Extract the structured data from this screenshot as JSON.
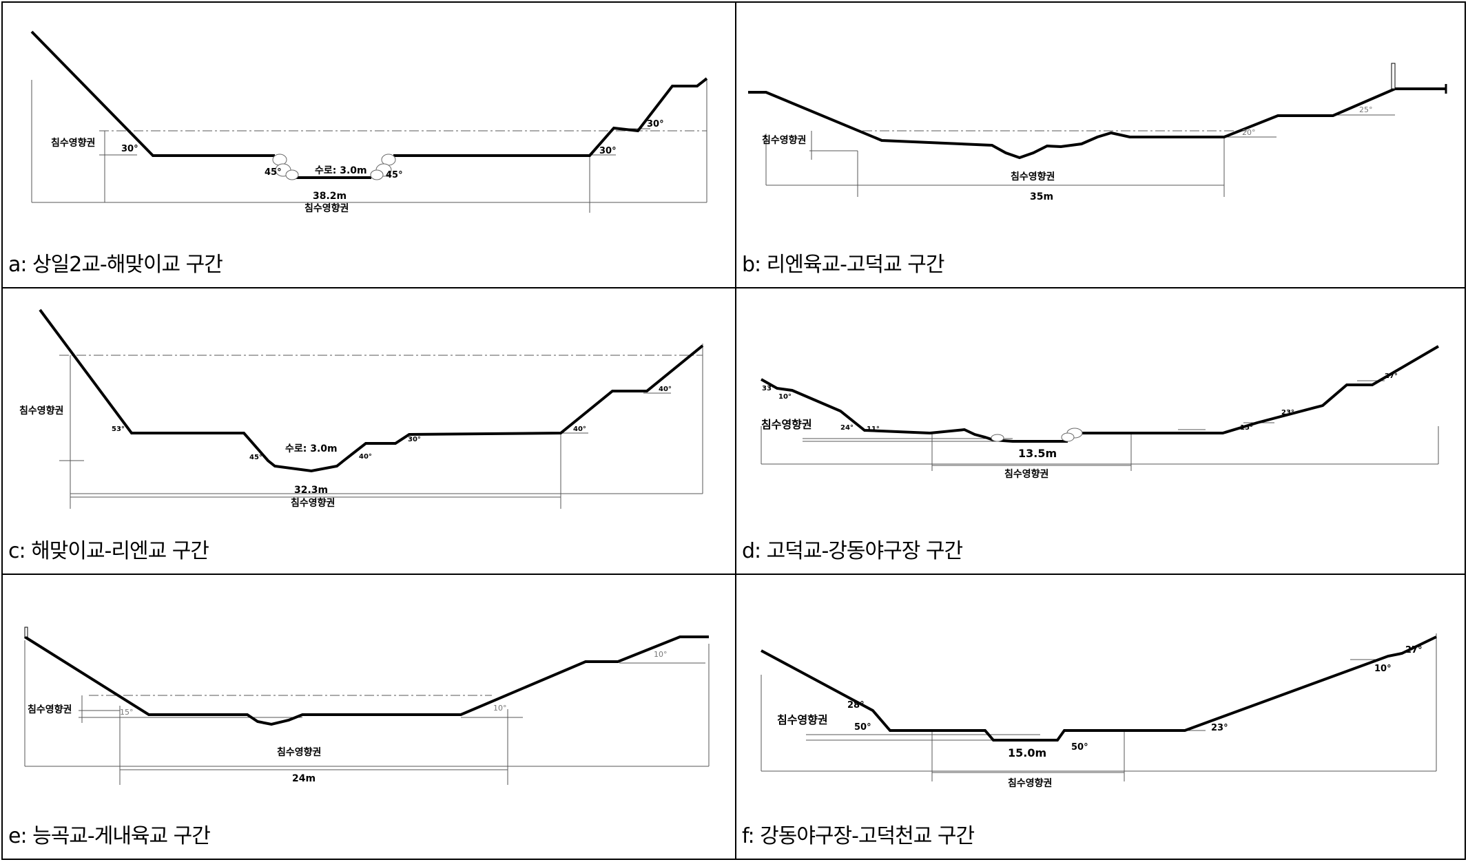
{
  "panels": [
    {
      "caption": "a: 상일2교-해맞이교 구간",
      "labels": {
        "zone_left": "침수영향권",
        "zone_bottom": "침수영향권",
        "width": "38.2m",
        "channel": "수로: 3.0m"
      },
      "angles": [
        "30°",
        "45°",
        "45°",
        "30°",
        "30°"
      ]
    },
    {
      "caption": "b: 리엔육교-고덕교 구간",
      "labels": {
        "zone_left": "침수영향권",
        "zone_center": "침수영향권",
        "width": "35m"
      },
      "angles": [
        "25°",
        "20°"
      ]
    },
    {
      "caption": "c: 해맞이교-리엔교 구간",
      "labels": {
        "zone_left": "침수영향권",
        "zone_bottom": "침수영향권",
        "width": "32.3m",
        "channel": "수로: 3.0m"
      },
      "angles": [
        "53°",
        "45°",
        "40°",
        "30°",
        "40°",
        "40°"
      ]
    },
    {
      "caption": "d: 고덕교-강동야구장 구간",
      "labels": {
        "zone_left": "침수영향권",
        "zone_bottom": "침수영향권",
        "width": "13.5m"
      },
      "angles": [
        "33°",
        "10°",
        "24°",
        "11°",
        "15°",
        "23°",
        "27°"
      ]
    },
    {
      "caption": "e: 능곡교-게내육교 구간",
      "labels": {
        "zone_left": "침수영향권",
        "zone_center": "침수영향권",
        "width": "24m"
      },
      "angles": [
        "15°",
        "10°",
        "10°"
      ]
    },
    {
      "caption": "f: 강동야구장-고덕천교 구간",
      "labels": {
        "zone_left": "침수영향권",
        "zone_bottom": "침수영향권",
        "width": "15.0m"
      },
      "angles": [
        "28°",
        "50°",
        "50°",
        "23°",
        "10°",
        "27°"
      ]
    }
  ]
}
